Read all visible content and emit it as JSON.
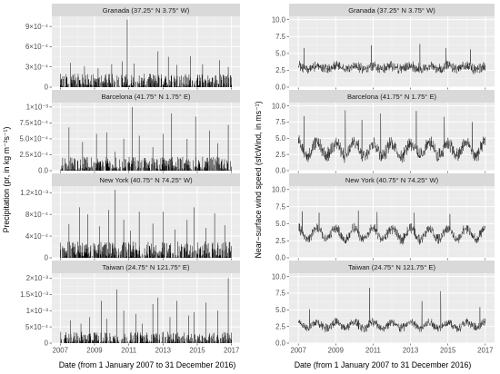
{
  "chart_data": [
    {
      "type": "bar",
      "variable": "precipitation",
      "ylabel": "Precipitation (pr, in kg m⁻²s⁻¹)",
      "xlabel": "Date (from 1 January 2007 to 31 December 2016)",
      "x_ticks": [
        "2007",
        "2009",
        "2011",
        "2013",
        "2015",
        "2017"
      ],
      "x_range": [
        "2007-01-01",
        "2017-01-01"
      ],
      "grid": true,
      "panels": [
        {
          "title": "Granada (37.25° N 3.75° W)",
          "ylim": [
            0,
            0.00105
          ],
          "y_ticks": [
            0,
            0.0003,
            0.0006,
            0.0009
          ],
          "y_tick_labels": [
            "0",
            "3×10⁻⁴",
            "6×10⁻⁴",
            "9×10⁻⁴"
          ],
          "base_max": 0.0002,
          "peaks": [
            [
              2007.6,
              0.00036
            ],
            [
              2008.4,
              0.00031
            ],
            [
              2009.2,
              0.00028
            ],
            [
              2010.0,
              0.00034
            ],
            [
              2010.6,
              0.00038
            ],
            [
              2010.9,
              0.001
            ],
            [
              2011.3,
              0.00035
            ],
            [
              2012.7,
              0.00053
            ],
            [
              2013.3,
              0.00045
            ],
            [
              2013.8,
              0.00033
            ],
            [
              2014.6,
              0.00046
            ],
            [
              2015.3,
              0.00034
            ],
            [
              2016.3,
              0.0004
            ],
            [
              2016.8,
              0.0003
            ]
          ]
        },
        {
          "title": "Barcelona (41.75° N 1.75° E)",
          "ylim": [
            0,
            0.00107
          ],
          "y_ticks": [
            0,
            0.00025,
            0.0005,
            0.00075,
            0.001
          ],
          "y_tick_labels": [
            "0.0",
            "2.5×10⁻⁴",
            "5.0×10⁻⁴",
            "7.5×10⁻⁴",
            "1×10⁻³"
          ],
          "base_max": 0.00022,
          "peaks": [
            [
              2007.5,
              0.00068
            ],
            [
              2008.3,
              0.00045
            ],
            [
              2009.1,
              0.00058
            ],
            [
              2009.7,
              0.0006
            ],
            [
              2010.2,
              0.0003
            ],
            [
              2010.7,
              0.0005
            ],
            [
              2011.2,
              0.001
            ],
            [
              2011.6,
              0.00055
            ],
            [
              2012.4,
              0.00037
            ],
            [
              2013.0,
              0.00058
            ],
            [
              2013.5,
              0.0009
            ],
            [
              2014.4,
              0.0005
            ],
            [
              2014.9,
              0.00085
            ],
            [
              2015.7,
              0.00063
            ],
            [
              2016.2,
              0.00043
            ],
            [
              2016.8,
              0.00072
            ]
          ]
        },
        {
          "title": "New York (40.75° N 74.25° W)",
          "ylim": [
            0,
            0.00132
          ],
          "y_ticks": [
            0,
            0.0004,
            0.0008,
            0.0012
          ],
          "y_tick_labels": [
            "0",
            "4×10⁻⁴",
            "8×10⁻⁴",
            "1.2×10⁻³"
          ],
          "base_max": 0.0003,
          "peaks": [
            [
              2007.5,
              0.00062
            ],
            [
              2008.1,
              0.00093
            ],
            [
              2008.6,
              0.0008
            ],
            [
              2009.3,
              0.00058
            ],
            [
              2009.8,
              0.00088
            ],
            [
              2010.2,
              0.00125
            ],
            [
              2010.7,
              0.0007
            ],
            [
              2011.1,
              0.0005
            ],
            [
              2011.6,
              0.00085
            ],
            [
              2012.4,
              0.00063
            ],
            [
              2013.0,
              0.00085
            ],
            [
              2013.7,
              0.00052
            ],
            [
              2014.4,
              0.0007
            ],
            [
              2014.8,
              0.00093
            ],
            [
              2015.5,
              0.00055
            ],
            [
              2016.0,
              0.00082
            ],
            [
              2016.6,
              0.0006
            ]
          ]
        },
        {
          "title": "Taiwan (24.75° N 121.75° E)",
          "ylim": [
            0,
            0.00215
          ],
          "y_ticks": [
            0,
            0.0005,
            0.001,
            0.0015,
            0.002
          ],
          "y_tick_labels": [
            "0",
            "5×10⁻⁴",
            "1×10⁻³",
            "1.5×10⁻³",
            "2×10⁻³"
          ],
          "base_max": 0.00035,
          "peaks": [
            [
              2007.6,
              0.0007
            ],
            [
              2008.2,
              0.0006
            ],
            [
              2008.7,
              0.0008
            ],
            [
              2009.4,
              0.0013
            ],
            [
              2009.7,
              0.00075
            ],
            [
              2010.3,
              0.00165
            ],
            [
              2010.7,
              0.001
            ],
            [
              2011.4,
              0.0009
            ],
            [
              2011.8,
              0.0006
            ],
            [
              2012.4,
              0.0012
            ],
            [
              2012.7,
              0.0014
            ],
            [
              2013.4,
              0.0008
            ],
            [
              2013.8,
              0.0013
            ],
            [
              2014.5,
              0.00085
            ],
            [
              2014.8,
              0.00095
            ],
            [
              2015.5,
              0.00125
            ],
            [
              2016.2,
              0.001
            ],
            [
              2016.8,
              0.002
            ]
          ]
        }
      ]
    },
    {
      "type": "line",
      "variable": "wind_speed",
      "ylabel": "Near−surface wind speed (sfcWind, in ms⁻¹)",
      "xlabel": "Date (from 1 January 2007 to 31 December 2016)",
      "x_ticks": [
        "2007",
        "2009",
        "2011",
        "2013",
        "2015",
        "2017"
      ],
      "x_range": [
        "2007-01-01",
        "2017-01-01"
      ],
      "grid": true,
      "panels": [
        {
          "title": "Granada (37.25° N 3.75° W)",
          "ylim": [
            0,
            10.5
          ],
          "y_ticks": [
            0,
            2.5,
            5,
            7.5,
            10
          ],
          "y_tick_labels": [
            "0.0",
            "2.5",
            "5.0",
            "7.5",
            "10.0"
          ],
          "mean": 2.9,
          "seasonal_amplitude": 0.2,
          "noise": 0.9,
          "peaks": [
            [
              2007.3,
              5.8
            ],
            [
              2010.9,
              6.2
            ],
            [
              2013.5,
              6.4
            ],
            [
              2014.9,
              5.8
            ],
            [
              2016.2,
              5.6
            ]
          ]
        },
        {
          "title": "Barcelona (41.75° N 1.75° E)",
          "ylim": [
            0,
            10.5
          ],
          "y_ticks": [
            0,
            2.5,
            5,
            7.5,
            10
          ],
          "y_tick_labels": [
            "0.0",
            "2.5",
            "5.0",
            "7.5",
            "10.0"
          ],
          "mean": 3.3,
          "seasonal_amplitude": 1.0,
          "noise": 1.3,
          "peaks": [
            [
              2007.3,
              8.4
            ],
            [
              2009.5,
              9.3
            ],
            [
              2010.4,
              7.8
            ],
            [
              2011.4,
              8.8
            ],
            [
              2013.3,
              9.2
            ],
            [
              2014.8,
              8.3
            ],
            [
              2016.3,
              7.5
            ]
          ]
        },
        {
          "title": "New York (40.75° N 74.25° W)",
          "ylim": [
            0,
            10.5
          ],
          "y_ticks": [
            0,
            2.5,
            5,
            7.5,
            10
          ],
          "y_tick_labels": [
            "0.0",
            "2.5",
            "5.0",
            "7.5",
            "10.0"
          ],
          "mean": 3.5,
          "seasonal_amplitude": 0.8,
          "noise": 0.9,
          "peaks": [
            [
              2007.2,
              6.8
            ],
            [
              2008.1,
              6.6
            ],
            [
              2010.2,
              6.9
            ],
            [
              2011.2,
              6.7
            ],
            [
              2013.2,
              6.6
            ],
            [
              2015.1,
              6.4
            ]
          ]
        },
        {
          "title": "Taiwan (24.75° N 121.75° E)",
          "ylim": [
            0,
            10.5
          ],
          "y_ticks": [
            0,
            2.5,
            5,
            7.5,
            10
          ],
          "y_tick_labels": [
            "0.0",
            "2.5",
            "5.0",
            "7.5",
            "10.0"
          ],
          "mean": 2.7,
          "seasonal_amplitude": 0.4,
          "noise": 0.8,
          "peaks": [
            [
              2007.6,
              5.1
            ],
            [
              2010.8,
              8.3
            ],
            [
              2013.6,
              6.3
            ],
            [
              2014.6,
              7.8
            ],
            [
              2016.7,
              5.4
            ]
          ]
        }
      ]
    }
  ]
}
